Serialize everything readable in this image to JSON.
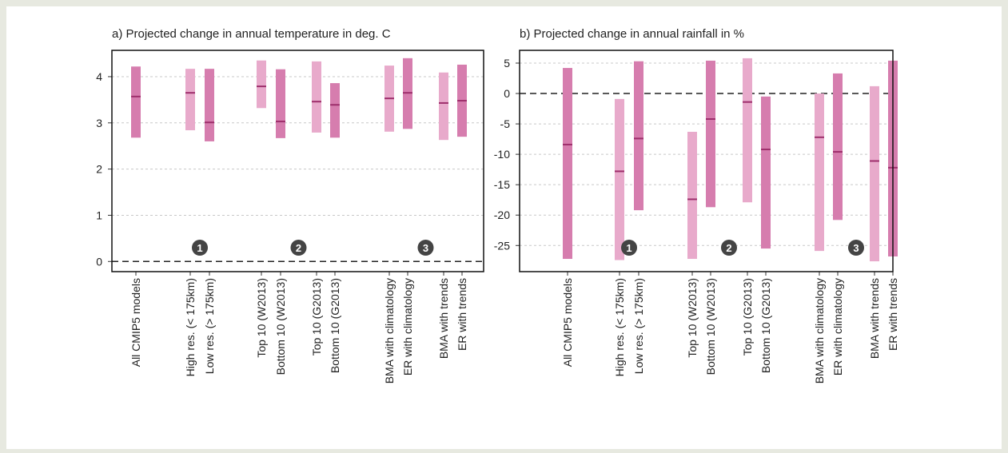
{
  "chart_data": [
    {
      "type": "range",
      "title": "a) Projected change in annual temperature in deg. C",
      "categories": [
        "All CMIP5 models",
        "High res. (< 175km)",
        "Low res. (> 175km)",
        "Top 10 (W2013)",
        "Bottom 10 (W2013)",
        "Top 10 (G2013)",
        "Bottom 10 (G2013)",
        "BMA with climatology",
        "ER with climatology",
        "BMA with trends",
        "ER with trends"
      ],
      "low": [
        2.68,
        2.84,
        2.6,
        3.32,
        2.67,
        2.79,
        2.68,
        2.81,
        2.87,
        2.63,
        2.7
      ],
      "median": [
        3.57,
        3.65,
        3.01,
        3.79,
        3.03,
        3.46,
        3.39,
        3.53,
        3.65,
        3.43,
        3.48
      ],
      "high": [
        4.22,
        4.17,
        4.17,
        4.35,
        4.16,
        4.33,
        3.86,
        4.24,
        4.4,
        4.09,
        4.26
      ],
      "colors": [
        "#d67dae",
        "#e8aacb",
        "#d67dae",
        "#e8aacb",
        "#d67dae",
        "#e8aacb",
        "#d67dae",
        "#e8aacb",
        "#d67dae",
        "#e8aacb",
        "#d67dae"
      ],
      "median_color": "#9e2f6c",
      "ylim": [
        -0.22,
        4.57
      ],
      "yticks": [
        0,
        1,
        2,
        3,
        4
      ],
      "grid": true,
      "zero_line": true,
      "annotations": [
        "1",
        "2",
        "3"
      ]
    },
    {
      "type": "range",
      "title": "b) Projected change in annual rainfall in %",
      "categories": [
        "All CMIP5 models",
        "High res. (< 175km)",
        "Low res. (> 175km)",
        "Top 10 (W2013)",
        "Bottom 10 (W2013)",
        "Top 10 (G2013)",
        "Bottom 10 (G2013)",
        "BMA with climatology",
        "ER with climatology",
        "BMA with trends",
        "ER with trends"
      ],
      "low": [
        -27.2,
        -27.4,
        -19.2,
        -27.2,
        -18.7,
        -17.9,
        -25.5,
        -25.9,
        -20.8,
        -27.6,
        -26.8
      ],
      "median": [
        -8.4,
        -12.8,
        -7.4,
        -17.4,
        -4.2,
        -1.4,
        -9.2,
        -7.2,
        -9.6,
        -11.1,
        -12.2
      ],
      "high": [
        4.2,
        -0.9,
        5.3,
        -6.3,
        5.4,
        5.8,
        -0.5,
        0,
        3.3,
        1.2,
        5.4
      ],
      "colors": [
        "#d67dae",
        "#e8aacb",
        "#d67dae",
        "#e8aacb",
        "#d67dae",
        "#e8aacb",
        "#d67dae",
        "#e8aacb",
        "#d67dae",
        "#e8aacb",
        "#d67dae"
      ],
      "median_color": "#9e2f6c",
      "ylim": [
        -29.3,
        7.1
      ],
      "yticks": [
        -25,
        -20,
        -15,
        -10,
        -5,
        0,
        5
      ],
      "grid": true,
      "zero_line": true,
      "annotations": [
        "1",
        "2",
        "3"
      ]
    }
  ]
}
